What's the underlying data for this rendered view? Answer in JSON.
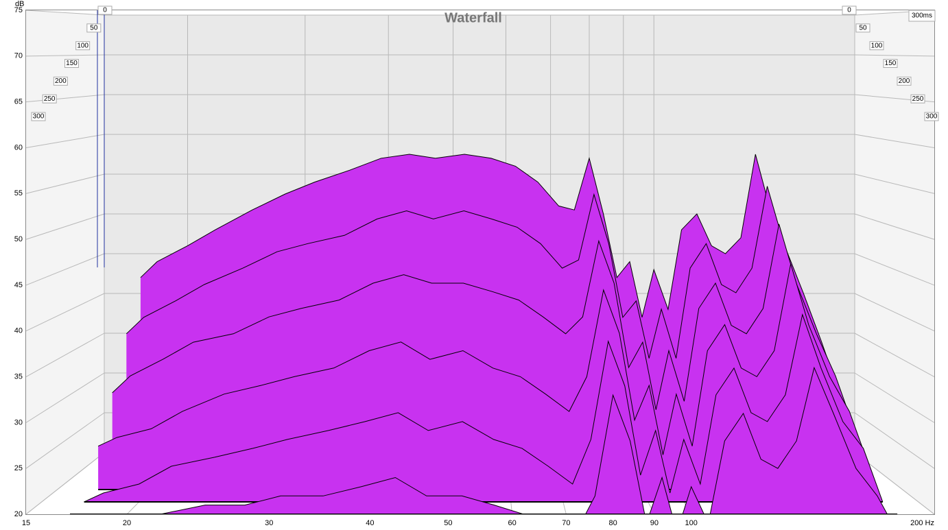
{
  "chart_data": {
    "type": "waterfall",
    "title": "Waterfall",
    "ylabel": "dB",
    "xscale": "log",
    "xlim": [
      15,
      200
    ],
    "xticks": [
      15,
      20,
      30,
      40,
      50,
      60,
      70,
      80,
      90,
      100,
      {
        "value": 200,
        "label": "200 Hz"
      }
    ],
    "ylim": [
      20,
      75
    ],
    "yticks": [
      20,
      25,
      30,
      35,
      40,
      45,
      50,
      55,
      60,
      65,
      70,
      75
    ],
    "zlim": [
      0,
      300
    ],
    "zticks": [
      0,
      50,
      100,
      150,
      200,
      250,
      300
    ],
    "zend_label": {
      "value": 300,
      "label": "300ms"
    },
    "color": "#c832f0",
    "x": [
      17,
      18,
      20,
      22,
      25,
      28,
      31,
      35,
      39,
      43,
      47,
      52,
      57,
      62,
      67,
      72,
      76,
      80,
      84,
      88,
      92,
      96,
      100,
      105,
      110,
      116,
      122,
      128,
      135,
      142,
      150,
      160,
      170,
      180
    ],
    "z": [
      0,
      60,
      120,
      180,
      240,
      300
    ],
    "series": [
      {
        "values": [
          42,
          44,
          46,
          48,
          50.5,
          52.5,
          54,
          55.5,
          57,
          57.5,
          57,
          57.5,
          57,
          56,
          54,
          51,
          50.5,
          57,
          50,
          42,
          44,
          37,
          43,
          38,
          48,
          50,
          46,
          45,
          47,
          57.5,
          50,
          44,
          38,
          32
        ]
      },
      {
        "values": [
          36,
          38,
          40,
          42,
          44,
          46,
          47,
          48,
          50,
          51,
          50,
          51,
          50,
          49,
          47,
          44,
          45,
          53,
          47,
          38,
          40,
          33,
          39,
          33,
          44,
          47,
          42,
          41,
          44,
          54,
          47,
          41,
          35,
          29
        ]
      },
      {
        "values": [
          30,
          32,
          34,
          36,
          37,
          39,
          40,
          41,
          43,
          44,
          43,
          43,
          42,
          41,
          39,
          37,
          39,
          48,
          43,
          33,
          36,
          28,
          35,
          29,
          40,
          43,
          38,
          37,
          40,
          50,
          43,
          37,
          32,
          26
        ]
      },
      {
        "values": [
          25,
          26,
          27,
          29,
          31,
          32,
          33,
          34,
          36,
          37,
          35,
          36,
          34,
          33,
          31,
          29,
          33,
          43,
          38,
          28,
          32,
          24,
          31,
          25,
          36,
          39,
          34,
          33,
          36,
          46,
          39,
          33,
          29,
          23
        ]
      },
      {
        "values": [
          20,
          21,
          22,
          24,
          25,
          26,
          27,
          28,
          29,
          30,
          28,
          29,
          27,
          26,
          24,
          22,
          27,
          38,
          33,
          23,
          28,
          21,
          27,
          22,
          32,
          35,
          30,
          29,
          32,
          41,
          35,
          29,
          26,
          20
        ]
      },
      {
        "values": [
          17,
          17,
          18,
          20,
          21,
          21,
          22,
          22,
          23,
          24,
          22,
          22,
          21,
          20,
          19,
          18,
          22,
          33,
          28,
          19,
          24,
          18,
          23,
          19,
          28,
          31,
          26,
          25,
          28,
          36,
          31,
          25,
          22,
          18
        ]
      }
    ]
  }
}
